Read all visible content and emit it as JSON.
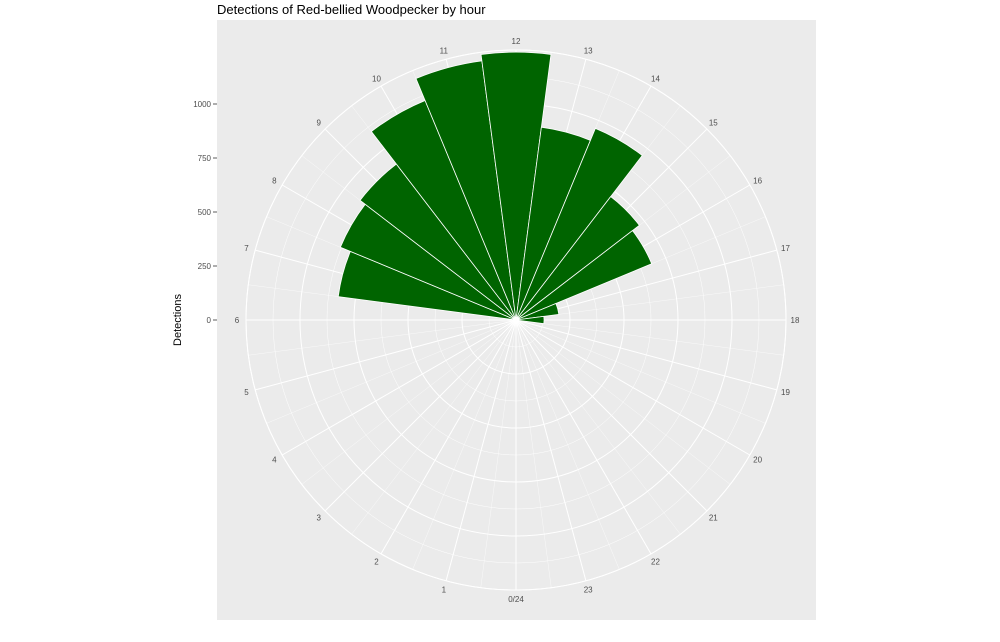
{
  "chart_data": {
    "type": "bar",
    "coord": "polar",
    "title": "Detections of Red-bellied Woodpecker by hour",
    "xlabel": "",
    "ylabel": "Detections",
    "bar_color": "#006400",
    "panel_color": "#ebebeb",
    "grid": true,
    "categories": [
      "0/24",
      "1",
      "2",
      "3",
      "4",
      "5",
      "6",
      "7",
      "8",
      "9",
      "10",
      "11",
      "12",
      "13",
      "14",
      "15",
      "16",
      "17",
      "18",
      "19",
      "20",
      "21",
      "22",
      "23"
    ],
    "values": [
      0,
      0,
      0,
      0,
      0,
      0,
      15,
      830,
      880,
      910,
      1100,
      1210,
      1240,
      900,
      960,
      720,
      680,
      200,
      130,
      0,
      0,
      0,
      0,
      0
    ],
    "y_ticks": [
      0,
      250,
      500,
      750,
      1000
    ],
    "y_tick_labels": [
      "0",
      "250",
      "500",
      "750",
      "1000"
    ],
    "ylim": [
      0,
      1250
    ]
  }
}
